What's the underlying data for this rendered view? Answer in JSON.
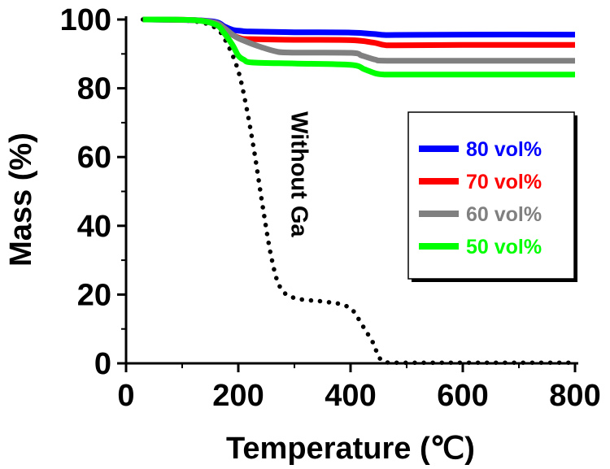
{
  "chart_data": {
    "type": "line",
    "xlabel": "Temperature (℃)",
    "ylabel": "Mass (%)",
    "xlim": [
      0,
      800
    ],
    "ylim": [
      0,
      100
    ],
    "xticks": [
      0,
      200,
      400,
      600,
      800
    ],
    "yticks": [
      0,
      20,
      40,
      60,
      80,
      100
    ],
    "grid": false,
    "legend_position": "right",
    "series": [
      {
        "name": "80 vol%",
        "color": "#0000ff",
        "style": "solid",
        "x": [
          30,
          120,
          160,
          175,
          190,
          205,
          220,
          300,
          400,
          440,
          460,
          480,
          600,
          800
        ],
        "y": [
          100,
          99.8,
          99.3,
          98,
          97,
          96.7,
          96.5,
          96.3,
          96.2,
          95.8,
          95.5,
          95.5,
          95.6,
          95.6
        ]
      },
      {
        "name": "70 vol%",
        "color": "#ff0000",
        "style": "solid",
        "x": [
          30,
          120,
          160,
          175,
          190,
          205,
          220,
          300,
          400,
          440,
          460,
          480,
          600,
          800
        ],
        "y": [
          100,
          99.8,
          99,
          97.5,
          95.5,
          94.5,
          94.3,
          94.1,
          94,
          93.3,
          92.6,
          92.5,
          92.6,
          92.6
        ]
      },
      {
        "name": "60 vol%",
        "color": "#808080",
        "style": "solid",
        "x": [
          30,
          120,
          160,
          175,
          195,
          215,
          240,
          265,
          290,
          400,
          420,
          445,
          465,
          600,
          800
        ],
        "y": [
          100,
          99.8,
          99,
          97.5,
          95,
          93.5,
          92,
          90.8,
          90.4,
          90.3,
          89.5,
          88.3,
          88,
          88,
          88
        ]
      },
      {
        "name": "50 vol%",
        "color": "#00ff00",
        "style": "solid",
        "x": [
          30,
          120,
          160,
          175,
          190,
          200,
          210,
          225,
          300,
          400,
          425,
          445,
          460,
          480,
          600,
          800
        ],
        "y": [
          100,
          99.8,
          98.5,
          96,
          92.5,
          89.5,
          88.3,
          87.5,
          87.2,
          86.8,
          85.5,
          84.3,
          84,
          84,
          84,
          84
        ]
      },
      {
        "name": "Without Ga",
        "color": "#000000",
        "style": "dotted",
        "x": [
          30,
          120,
          160,
          180,
          200,
          215,
          230,
          245,
          260,
          275,
          300,
          350,
          380,
          400,
          410,
          425,
          440,
          450,
          460,
          480,
          600,
          800
        ],
        "y": [
          100,
          99.5,
          97.5,
          93,
          85,
          74,
          60,
          44,
          30,
          22,
          19,
          18,
          17.3,
          16,
          14,
          10,
          6,
          2,
          0.5,
          0.2,
          0.2,
          0.2
        ]
      }
    ],
    "annotations": [
      {
        "text": "Without Ga",
        "x": 295,
        "y": 55,
        "rotation": 90
      }
    ]
  }
}
